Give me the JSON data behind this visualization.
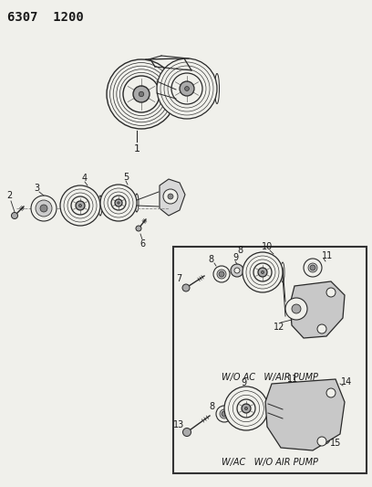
{
  "title": "6307  1200",
  "bg_color": "#f0f0eb",
  "line_color": "#2a2a2a",
  "box_label1": "W/O AC   W/AIR PUMP",
  "box_label2": "W/AC   W/O AIR PUMP",
  "fig_w": 4.08,
  "fig_h": 5.33,
  "dpi": 100,
  "xlim": [
    0,
    408
  ],
  "ylim": [
    533,
    0
  ]
}
